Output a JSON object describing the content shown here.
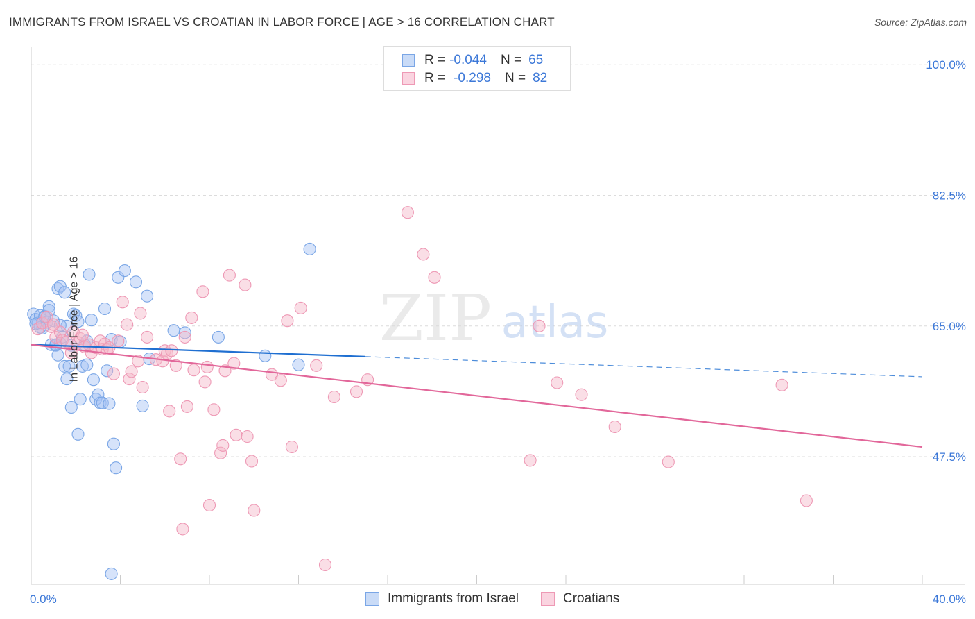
{
  "header": {
    "title": "IMMIGRANTS FROM ISRAEL VS CROATIAN IN LABOR FORCE | AGE > 16 CORRELATION CHART",
    "source": "Source: ZipAtlas.com"
  },
  "watermark": {
    "zip": "ZIP",
    "atlas": "atlas"
  },
  "legend_top": {
    "rows": [
      {
        "r_label": "R =",
        "r_value": "-0.044",
        "n_label": "N =",
        "n_value": "65",
        "color": "#a4c2f4"
      },
      {
        "r_label": "R =",
        "r_value": "-0.298",
        "n_label": "N =",
        "n_value": "82",
        "color": "#f4b6c8"
      }
    ]
  },
  "chart_data": {
    "type": "scatter",
    "title": "IMMIGRANTS FROM ISRAEL VS CROATIAN IN LABOR FORCE | AGE > 16 CORRELATION CHART",
    "xlabel": "",
    "ylabel": "In Labor Force | Age > 16",
    "xlim": [
      0,
      40
    ],
    "ylim": [
      30.4,
      101.6
    ],
    "x_tick_labels": [
      "0.0%",
      "40.0%"
    ],
    "y_ticks": [
      47.5,
      65.0,
      82.5,
      100.0
    ],
    "y_tick_labels": [
      "47.5%",
      "65.0%",
      "82.5%",
      "100.0%"
    ],
    "grid": true,
    "legend_position": "bottom",
    "series": [
      {
        "name": "Immigrants from Israel",
        "color": "#7aa6e6",
        "fill": "#a4c2f4",
        "trend": {
          "x": [
            0,
            15
          ],
          "y": [
            62.5,
            60.9
          ],
          "dashed_to": [
            40,
            58.2
          ],
          "color": "#1f6fd1"
        },
        "points": [
          [
            0.1,
            66.6
          ],
          [
            0.2,
            65.9
          ],
          [
            0.3,
            65.4
          ],
          [
            0.4,
            66.4
          ],
          [
            0.5,
            64.7
          ],
          [
            0.6,
            66.3
          ],
          [
            0.7,
            65.5
          ],
          [
            0.8,
            67.6
          ],
          [
            0.9,
            62.5
          ],
          [
            0.8,
            67.1
          ],
          [
            1.0,
            65.7
          ],
          [
            1.1,
            62.4
          ],
          [
            1.2,
            61.1
          ],
          [
            1.3,
            62.7
          ],
          [
            1.2,
            70.0
          ],
          [
            1.3,
            70.3
          ],
          [
            1.4,
            63.5
          ],
          [
            1.5,
            69.5
          ],
          [
            1.6,
            65.0
          ],
          [
            1.5,
            59.6
          ],
          [
            1.7,
            59.6
          ],
          [
            1.6,
            57.9
          ],
          [
            1.8,
            62.4
          ],
          [
            1.9,
            66.6
          ],
          [
            2.0,
            66.4
          ],
          [
            2.1,
            65.6
          ],
          [
            2.2,
            55.2
          ],
          [
            2.3,
            59.6
          ],
          [
            2.4,
            62.5
          ],
          [
            2.5,
            63.0
          ],
          [
            2.6,
            71.9
          ],
          [
            2.7,
            65.8
          ],
          [
            2.8,
            57.8
          ],
          [
            2.9,
            55.2
          ],
          [
            3.0,
            55.8
          ],
          [
            3.1,
            54.7
          ],
          [
            3.2,
            54.7
          ],
          [
            3.3,
            67.3
          ],
          [
            3.4,
            59.0
          ],
          [
            3.5,
            54.6
          ],
          [
            3.6,
            63.2
          ],
          [
            3.7,
            49.2
          ],
          [
            3.8,
            46.0
          ],
          [
            3.9,
            71.5
          ],
          [
            4.2,
            72.4
          ],
          [
            4.7,
            70.9
          ],
          [
            5.0,
            54.3
          ],
          [
            5.2,
            69.0
          ],
          [
            5.3,
            60.6
          ],
          [
            6.4,
            64.4
          ],
          [
            6.9,
            64.1
          ],
          [
            8.4,
            63.5
          ],
          [
            10.5,
            61.0
          ],
          [
            12.0,
            59.8
          ],
          [
            12.5,
            75.3
          ],
          [
            3.6,
            31.8
          ],
          [
            0.4,
            64.8
          ],
          [
            0.6,
            66.2
          ],
          [
            1.3,
            65.1
          ],
          [
            2.5,
            59.8
          ],
          [
            4.0,
            62.9
          ],
          [
            0.2,
            65.3
          ],
          [
            1.8,
            54.1
          ],
          [
            2.1,
            50.5
          ],
          [
            1.1,
            62.5
          ]
        ]
      },
      {
        "name": "Croatians",
        "color": "#ee99b5",
        "fill": "#f4b6c8",
        "trend": {
          "x": [
            0,
            40
          ],
          "y": [
            62.5,
            48.8
          ],
          "color": "#e2679a"
        },
        "points": [
          [
            0.3,
            64.6
          ],
          [
            0.5,
            65.4
          ],
          [
            0.7,
            66.2
          ],
          [
            0.9,
            64.9
          ],
          [
            1.1,
            63.5
          ],
          [
            1.3,
            64.2
          ],
          [
            1.4,
            63.1
          ],
          [
            1.6,
            62.9
          ],
          [
            1.8,
            61.4
          ],
          [
            1.9,
            64.2
          ],
          [
            2.1,
            62.8
          ],
          [
            2.2,
            63.3
          ],
          [
            2.4,
            62.2
          ],
          [
            2.6,
            62.5
          ],
          [
            2.7,
            61.4
          ],
          [
            2.9,
            62.1
          ],
          [
            3.1,
            63.0
          ],
          [
            3.2,
            61.9
          ],
          [
            3.3,
            62.6
          ],
          [
            3.4,
            61.9
          ],
          [
            3.5,
            62.1
          ],
          [
            3.7,
            58.6
          ],
          [
            3.9,
            63.0
          ],
          [
            4.1,
            68.2
          ],
          [
            4.3,
            65.2
          ],
          [
            4.4,
            57.9
          ],
          [
            4.5,
            58.9
          ],
          [
            4.8,
            60.3
          ],
          [
            4.9,
            66.7
          ],
          [
            5.0,
            56.8
          ],
          [
            5.2,
            63.5
          ],
          [
            5.6,
            60.5
          ],
          [
            5.9,
            60.3
          ],
          [
            6.0,
            61.7
          ],
          [
            6.1,
            61.3
          ],
          [
            6.2,
            53.6
          ],
          [
            6.3,
            61.7
          ],
          [
            6.5,
            59.7
          ],
          [
            6.7,
            47.2
          ],
          [
            6.8,
            37.8
          ],
          [
            6.9,
            63.5
          ],
          [
            7.0,
            54.2
          ],
          [
            7.2,
            66.1
          ],
          [
            7.3,
            59.1
          ],
          [
            7.7,
            69.6
          ],
          [
            7.8,
            57.5
          ],
          [
            7.9,
            59.5
          ],
          [
            8.2,
            53.8
          ],
          [
            8.5,
            48.0
          ],
          [
            8.6,
            49.0
          ],
          [
            8.7,
            59.0
          ],
          [
            8.9,
            71.8
          ],
          [
            9.1,
            60.0
          ],
          [
            9.2,
            50.4
          ],
          [
            9.6,
            70.5
          ],
          [
            9.7,
            50.2
          ],
          [
            9.9,
            46.9
          ],
          [
            10.0,
            40.3
          ],
          [
            10.8,
            58.5
          ],
          [
            11.2,
            57.7
          ],
          [
            11.5,
            65.7
          ],
          [
            11.7,
            48.8
          ],
          [
            12.1,
            67.4
          ],
          [
            12.8,
            59.7
          ],
          [
            13.2,
            33.0
          ],
          [
            13.6,
            55.5
          ],
          [
            14.6,
            56.2
          ],
          [
            15.1,
            57.8
          ],
          [
            16.9,
            80.2
          ],
          [
            17.6,
            74.6
          ],
          [
            18.1,
            71.5
          ],
          [
            22.4,
            47.0
          ],
          [
            22.8,
            65.0
          ],
          [
            23.6,
            57.4
          ],
          [
            24.7,
            55.8
          ],
          [
            26.2,
            51.5
          ],
          [
            28.6,
            46.8
          ],
          [
            33.7,
            57.1
          ],
          [
            34.8,
            41.6
          ],
          [
            8.0,
            41.0
          ],
          [
            1.0,
            65.2
          ],
          [
            2.3,
            63.8
          ]
        ]
      }
    ]
  },
  "bottom_legend": {
    "items": [
      {
        "label": "Immigrants from Israel",
        "color": "#a4c2f4"
      },
      {
        "label": "Croatians",
        "color": "#f4b6c8"
      }
    ]
  }
}
